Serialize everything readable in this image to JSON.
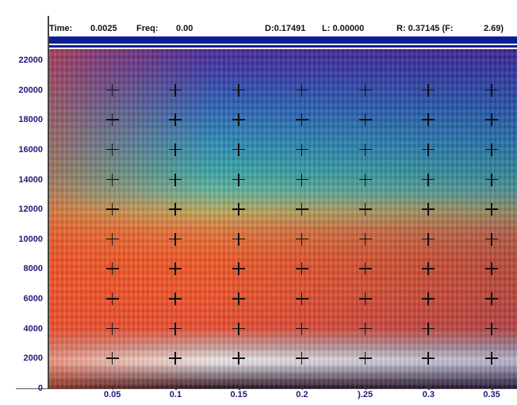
{
  "readout": {
    "time_label": "Time:",
    "time_value": "0.0025",
    "freq_label": "Freq:",
    "freq_value": "0.00",
    "d_text": "D:0.17491",
    "l_text": "L: 0.00000",
    "r_text": "R: 0.37145 (F:",
    "f_value": "2.69)"
  },
  "y_axis": {
    "labels": [
      "22000",
      "20000",
      "18000",
      "16000",
      "14000",
      "12000",
      "10000",
      "8000",
      "6000",
      "4000",
      "2000",
      "0"
    ],
    "values": [
      22000,
      20000,
      18000,
      16000,
      14000,
      12000,
      10000,
      8000,
      6000,
      4000,
      2000,
      0
    ],
    "range": [
      0,
      22000
    ]
  },
  "x_axis": {
    "labels": [
      "0.05",
      "0.1",
      "0.15",
      "0.2",
      ").25",
      "0.3",
      "0.35"
    ],
    "values": [
      0.05,
      0.1,
      0.15,
      0.2,
      0.25,
      0.3,
      0.35
    ],
    "range": [
      0.0,
      0.37
    ]
  },
  "colors": {
    "frame": "#0b1f8f",
    "label": "#1b1b7a"
  }
}
